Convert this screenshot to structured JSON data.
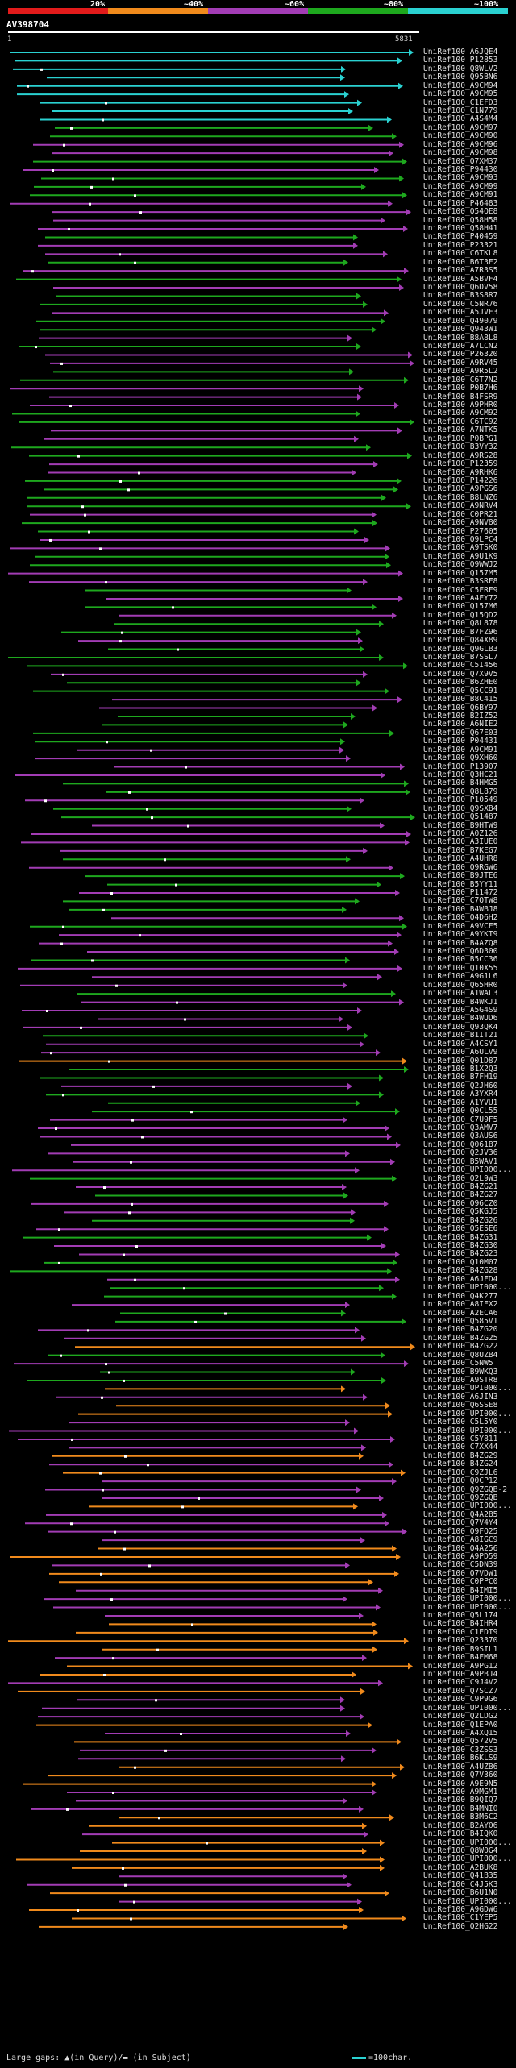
{
  "header": {
    "percent_labels": [
      "20%",
      "~40%",
      "~60%",
      "~80%",
      "~100%"
    ],
    "colors": [
      "#e21b1b",
      "#f08a1c",
      "#a23cb4",
      "#1ea81e",
      "#2ad1d1"
    ],
    "query_id": "AV398704",
    "query_start": "1",
    "query_end": "5831"
  },
  "hits": [
    "UniRef100_A6JQE4",
    "UniRef100_P12853",
    "UniRef100_Q8WLV2",
    "UniRef100_Q95BN6",
    "UniRef100_A9CM94",
    "UniRef100_A9CM95",
    "UniRef100_C1EFD3",
    "UniRef100_C1N779",
    "UniRef100_A4S4M4",
    "UniRef100_A9CM97",
    "UniRef100_A9CM90",
    "UniRef100_A9CM96",
    "UniRef100_A9CM98",
    "UniRef100_Q7XM37",
    "UniRef100_P94430",
    "UniRef100_A9CM93",
    "UniRef100_A9CM99",
    "UniRef100_A9CM91",
    "UniRef100_P46483",
    "UniRef100_Q54QE8",
    "UniRef100_Q58H58",
    "UniRef100_Q58H41",
    "UniRef100_P40459",
    "UniRef100_P23321",
    "UniRef100_C6TKL8",
    "UniRef100_B6T3E2",
    "UniRef100_A7R3S5",
    "UniRef100_A5BVF4",
    "UniRef100_Q6DV58",
    "UniRef100_B3S8R7",
    "UniRef100_C5NR76",
    "UniRef100_A5JVE3",
    "UniRef100_Q49079",
    "UniRef100_Q943W1",
    "UniRef100_B8A8L8",
    "UniRef100_A7LCN2",
    "UniRef100_P26320",
    "UniRef100_A9RV45",
    "UniRef100_A9R5L2",
    "UniRef100_C6T7N2",
    "UniRef100_P0B7H6",
    "UniRef100_B4FSR9",
    "UniRef100_A9PHR0",
    "UniRef100_A9CM92",
    "UniRef100_C6TC92",
    "UniRef100_A7NTK5",
    "UniRef100_P0BPG1",
    "UniRef100_B3VY32",
    "UniRef100_A9RS28",
    "UniRef100_P12359",
    "UniRef100_A9RHK6",
    "UniRef100_P14226",
    "UniRef100_A9PGS6",
    "UniRef100_B8LNZ6",
    "UniRef100_A9NRV4",
    "UniRef100_C0PR21",
    "UniRef100_A9NV80",
    "UniRef100_P27605",
    "UniRef100_Q9LPC4",
    "UniRef100_A9TSK0",
    "UniRef100_A9U1K9",
    "UniRef100_Q9WWJ2",
    "UniRef100_Q157M5",
    "UniRef100_B3SRF8",
    "UniRef100_C5FRF9",
    "UniRef100_A4FY72",
    "UniRef100_Q157M6",
    "UniRef100_Q15QD2",
    "UniRef100_Q8L878",
    "UniRef100_B7FZ96",
    "UniRef100_Q84X89",
    "UniRef100_Q9GLB3",
    "UniRef100_B7SSL7",
    "UniRef100_C5I456",
    "UniRef100_Q7X9V5",
    "UniRef100_B6ZHE0",
    "UniRef100_Q5CC91",
    "UniRef100_B8C415",
    "UniRef100_Q6BY97",
    "UniRef100_B2IZ52",
    "UniRef100_A6NIE2",
    "UniRef100_Q67E03",
    "UniRef100_P04431",
    "UniRef100_A9CM91",
    "UniRef100_Q9XH60",
    "UniRef100_P13907",
    "UniRef100_Q3HC21",
    "UniRef100_B4HMG5",
    "UniRef100_Q8L879",
    "UniRef100_P10549",
    "UniRef100_Q9SXB4",
    "UniRef100_Q51487",
    "UniRef100_B9HTW9",
    "UniRef100_A0Z126",
    "UniRef100_A3IUE0",
    "UniRef100_B7KEG7",
    "UniRef100_A4UHR8",
    "UniRef100_Q9RGW6",
    "UniRef100_B9JTE6",
    "UniRef100_B5YY11",
    "UniRef100_P11472",
    "UniRef100_C7QTW8",
    "UniRef100_B4WBJ8",
    "UniRef100_Q4D6H2",
    "UniRef100_A9VCE5",
    "UniRef100_A9YKT9",
    "UniRef100_B4AZQ8",
    "UniRef100_Q6D300",
    "UniRef100_B5CC36",
    "UniRef100_Q10X55",
    "UniRef100_A9G1L6",
    "UniRef100_Q65HR0",
    "UniRef100_A1WAL3",
    "UniRef100_B4WKJ1",
    "UniRef100_A5G4S9",
    "UniRef100_B4WUD6",
    "UniRef100_Q93QK4",
    "UniRef100_B1IT21",
    "UniRef100_A4CSY1",
    "UniRef100_A6ULV9",
    "UniRef100_Q01D87",
    "UniRef100_B1X2Q3",
    "UniRef100_B7FH19",
    "UniRef100_Q2JH60",
    "UniRef100_A3YXR4",
    "UniRef100_A1YVU1",
    "UniRef100_Q0CL55",
    "UniRef100_C7U9F5",
    "UniRef100_Q3AMV7",
    "UniRef100_Q3AUS6",
    "UniRef100_Q061B7",
    "UniRef100_Q2JV36",
    "UniRef100_B5WAV1",
    "UniRef100_UPI000...",
    "UniRef100_Q2L9W3",
    "UniRef100_B4ZG21",
    "UniRef100_B4ZG27",
    "UniRef100_Q96CZ0",
    "UniRef100_Q5KGJ5",
    "UniRef100_B4ZG26",
    "UniRef100_Q5ESE6",
    "UniRef100_B4ZG31",
    "UniRef100_B4ZG30",
    "UniRef100_B4ZG23",
    "UniRef100_Q10M07",
    "UniRef100_B4ZG28",
    "UniRef100_A6JFD4",
    "UniRef100_UPI000...",
    "UniRef100_Q4K277",
    "UniRef100_A8IEX2",
    "UniRef100_A2ECA6",
    "UniRef100_Q585V1",
    "UniRef100_B4ZG20",
    "UniRef100_B4ZG25",
    "UniRef100_B4ZG22",
    "UniRef100_Q8UZB4",
    "UniRef100_C5NW5",
    "UniRef100_B9WKQ3",
    "UniRef100_A9STR8",
    "UniRef100_UPI000...",
    "UniRef100_A6JIN3",
    "UniRef100_Q6SSE8",
    "UniRef100_UPI000...",
    "UniRef100_C5L5Y0",
    "UniRef100_UPI000...",
    "UniRef100_C5Y811",
    "UniRef100_C7XX44",
    "UniRef100_B4ZG29",
    "UniRef100_B4ZG24",
    "UniRef100_C9ZJL6",
    "UniRef100_Q0CP12",
    "UniRef100_Q9ZGQB-2",
    "UniRef100_Q9ZGQB",
    "UniRef100_UPI000...",
    "UniRef100_Q4A2B5",
    "UniRef100_Q7V4Y4",
    "UniRef100_Q9FQ25",
    "UniRef100_A8IGC9",
    "UniRef100_Q4A256",
    "UniRef100_A9PD59",
    "UniRef100_C5DN39",
    "UniRef100_Q7VDW1",
    "UniRef100_C0PPC0",
    "UniRef100_B4IMI5",
    "UniRef100_UPI000...",
    "UniRef100_UPI000...",
    "UniRef100_Q5L174",
    "UniRef100_B4IHR4",
    "UniRef100_C1EDT9",
    "UniRef100_Q23370",
    "UniRef100_B9SIL1",
    "UniRef100_B4FM68",
    "UniRef100_A9PG12",
    "UniRef100_A9PBJ4",
    "UniRef100_C9J4V2",
    "UniRef100_Q7SCZ7",
    "UniRef100_C9P9G6",
    "UniRef100_UPI000...",
    "UniRef100_Q2LDG2",
    "UniRef100_Q1EPA0",
    "UniRef100_A4XQ15",
    "UniRef100_Q572V5",
    "UniRef100_C3ZSS3",
    "UniRef100_B6KLS9",
    "UniRef100_A4UZB6",
    "UniRef100_Q7V360",
    "UniRef100_A9E9N5",
    "UniRef100_A9MGM1",
    "UniRef100_B9QIQ7",
    "UniRef100_B4MNI0",
    "UniRef100_B3M6C2",
    "UniRef100_B2AY06",
    "UniRef100_B4IQK0",
    "UniRef100_UPI000...",
    "UniRef100_Q8W0G4",
    "UniRef100_UPI000...",
    "UniRef100_A2BUK8",
    "UniRef100_Q41B35",
    "UniRef100_C4J5K3",
    "UniRef100_B6U1N0",
    "UniRef100_UPI000...",
    "UniRef100_A9GDW6",
    "UniRef100_C1YEP5",
    "UniRef100_Q2HG22"
  ],
  "legend": {
    "gaps_text": "Large gaps: ▲(in Query)/▬ (in Subject)",
    "scale_text": "=100char."
  }
}
